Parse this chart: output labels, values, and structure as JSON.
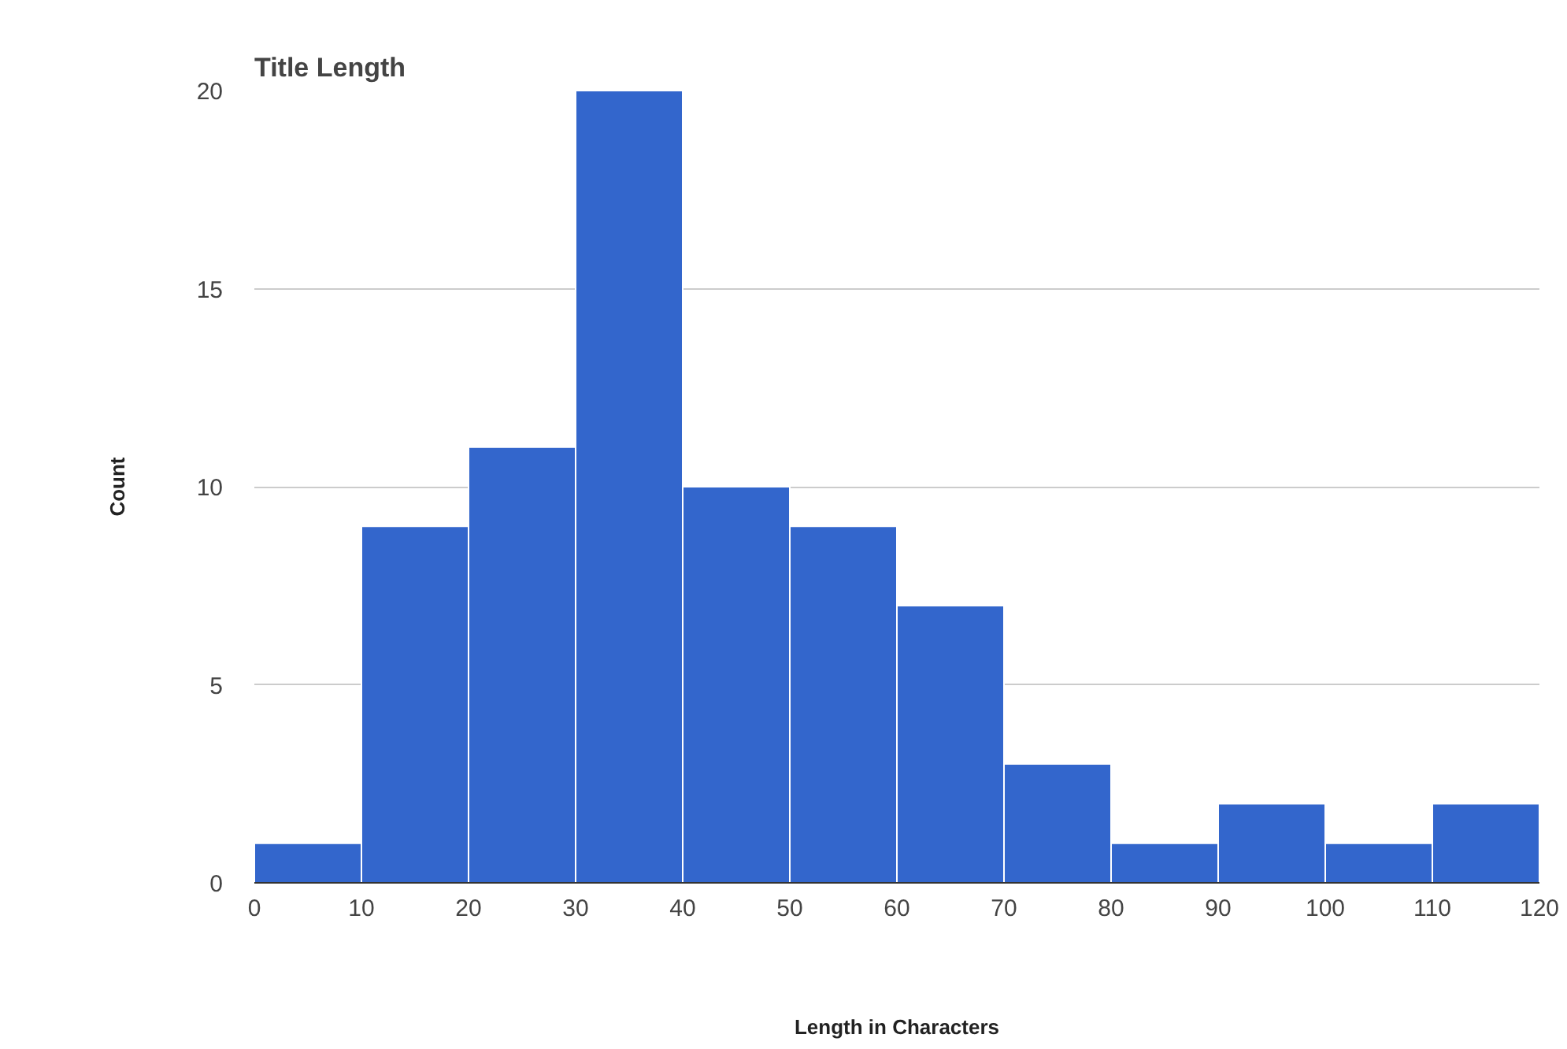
{
  "chart_data": {
    "type": "histogram",
    "title": "Title Length",
    "xlabel": "Length in Characters",
    "ylabel": "Count",
    "bins": [
      0,
      10,
      20,
      30,
      40,
      50,
      60,
      70,
      80,
      90,
      100,
      110,
      120
    ],
    "values": [
      1,
      9,
      11,
      20,
      10,
      9,
      7,
      3,
      1,
      2,
      1,
      2
    ],
    "color": "#3366cc",
    "xlim": [
      0,
      120
    ],
    "xticks": [
      0,
      10,
      20,
      30,
      40,
      50,
      60,
      70,
      80,
      90,
      100,
      110,
      120
    ],
    "ylim": [
      0,
      20
    ],
    "yticks": [
      0,
      5,
      10,
      15,
      20
    ],
    "grid": "y"
  }
}
